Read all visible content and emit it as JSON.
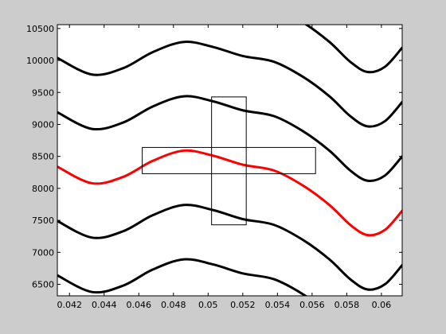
{
  "chart_data": {
    "type": "line",
    "title": "",
    "xlabel": "",
    "ylabel": "",
    "xlim": [
      0.0413,
      0.0612
    ],
    "ylim": [
      6320,
      10560
    ],
    "xticks": [
      0.042,
      0.044,
      0.046,
      0.048,
      0.05,
      0.052,
      0.054,
      0.056,
      0.058,
      0.06
    ],
    "xtick_labels": [
      "0.042",
      "0.044",
      "0.046",
      "0.048",
      "0.05",
      "0.052",
      "0.054",
      "0.056",
      "0.058",
      "0.06"
    ],
    "yticks": [
      6500,
      7000,
      7500,
      8000,
      8500,
      9000,
      9500,
      10000,
      10500
    ],
    "ytick_labels": [
      "6500",
      "7000",
      "7500",
      "8000",
      "8500",
      "9000",
      "9500",
      "10000",
      "10500"
    ],
    "grid": false,
    "background_color": "#cccccc",
    "plot_background_color": "#ffffff",
    "series_x": [
      0.0413,
      0.0433,
      0.0451,
      0.0468,
      0.0486,
      0.0503,
      0.052,
      0.0538,
      0.0555,
      0.057,
      0.0582,
      0.0592,
      0.0602,
      0.0612
    ],
    "series": [
      {
        "color": "#000000",
        "offset": -1700
      },
      {
        "color": "#000000",
        "offset": -850
      },
      {
        "color": "#ff0000",
        "offset": 0
      },
      {
        "color": "#000000",
        "offset": 850
      },
      {
        "color": "#000000",
        "offset": 1700
      },
      {
        "color": "#000000",
        "offset": 2550
      }
    ],
    "reference_curve_y": [
      8340,
      8080,
      8180,
      8430,
      8590,
      8510,
      8370,
      8280,
      8040,
      7740,
      7430,
      7270,
      7350,
      7650
    ],
    "rectangles": [
      {
        "name": "horizontal-rect",
        "x0": 0.0462,
        "x1": 0.0562,
        "y0": 8230,
        "y1": 8640
      },
      {
        "name": "vertical-rect",
        "x0": 0.0502,
        "x1": 0.0522,
        "y0": 7430,
        "y1": 9430
      }
    ]
  }
}
